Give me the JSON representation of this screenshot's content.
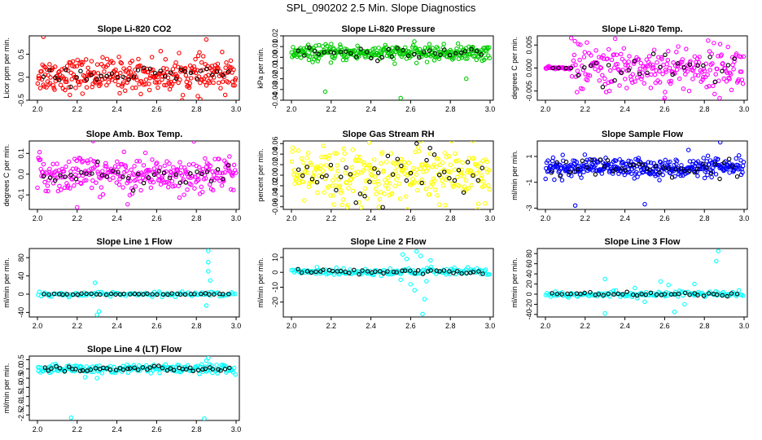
{
  "page_title": "SPL_090202  2.5 Min. Slope Diagnostics",
  "chart_data": [
    {
      "type": "scatter",
      "title": "Slope Li-820 CO2",
      "ylabel": "Licor ppm per min.",
      "color": "#ff0000",
      "xlim": [
        2.0,
        3.0
      ],
      "ylim": [
        -0.5,
        0.9
      ],
      "xticks": [
        "2.0",
        "2.2",
        "2.4",
        "2.6",
        "2.8",
        "3.0"
      ],
      "yticks": [
        {
          "v": -0.5,
          "label": "-0.5"
        },
        {
          "v": 0.0,
          "label": "0.0"
        },
        {
          "v": 0.5,
          "label": "0.5"
        }
      ],
      "center": 0.05,
      "spread": 0.18,
      "black_spread": 0.09,
      "n": 320,
      "nb": 36,
      "outliers": [
        [
          2.03,
          0.88
        ],
        [
          2.85,
          0.82
        ],
        [
          2.82,
          -0.48
        ]
      ]
    },
    {
      "type": "scatter",
      "title": "Slope Li-820 Pressure",
      "ylabel": "kPa per min.",
      "color": "#00cc00",
      "xlim": [
        2.0,
        3.0
      ],
      "ylim": [
        -0.04,
        0.02
      ],
      "xticks": [
        "2.0",
        "2.2",
        "2.4",
        "2.6",
        "2.8",
        "3.0"
      ],
      "yticks": [
        {
          "v": -0.04,
          "label": "-0.04"
        },
        {
          "v": -0.03,
          "label": "-0.03"
        },
        {
          "v": -0.02,
          "label": "-0.02"
        },
        {
          "v": -0.01,
          "label": "-0.01"
        },
        {
          "v": 0.0,
          "label": "0.00"
        },
        {
          "v": 0.01,
          "label": "0.01"
        },
        {
          "v": 0.02,
          "label": "0.02"
        }
      ],
      "center": 0.004,
      "spread": 0.0035,
      "black_spread": 0.003,
      "n": 320,
      "nb": 36,
      "outliers": [
        [
          2.17,
          -0.032
        ],
        [
          2.55,
          -0.038
        ],
        [
          2.88,
          -0.02
        ]
      ]
    },
    {
      "type": "scatter",
      "title": "Slope Li-820 Temp.",
      "ylabel": "degrees C per min.",
      "color": "#ff00ff",
      "xlim": [
        2.0,
        3.0
      ],
      "ylim": [
        -0.007,
        0.007
      ],
      "xticks": [
        "2.0",
        "2.2",
        "2.4",
        "2.6",
        "2.8",
        "3.0"
      ],
      "yticks": [
        {
          "v": -0.005,
          "label": "-0.005"
        },
        {
          "v": 0.0,
          "label": "0.000"
        },
        {
          "v": 0.005,
          "label": "0.005"
        }
      ],
      "center": 0.0,
      "spread": 0.0025,
      "black_spread": 0.0015,
      "n": 280,
      "nb": 30,
      "outliers": [
        [
          2.13,
          0.0065
        ],
        [
          2.6,
          -0.0065
        ]
      ],
      "flat_until": 2.13
    },
    {
      "type": "scatter",
      "title": "Slope Amb. Box Temp.",
      "ylabel": "degrees C per min.",
      "color": "#ff00ff",
      "xlim": [
        2.0,
        3.0
      ],
      "ylim": [
        -0.17,
        0.16
      ],
      "xticks": [
        "2.0",
        "2.2",
        "2.4",
        "2.6",
        "2.8",
        "3.0"
      ],
      "yticks": [
        {
          "v": -0.1,
          "label": "-0.1"
        },
        {
          "v": 0.0,
          "label": "0.0"
        },
        {
          "v": 0.1,
          "label": "0.1"
        }
      ],
      "center": 0.0,
      "spread": 0.045,
      "black_spread": 0.025,
      "n": 300,
      "nb": 36,
      "outliers": [
        [
          2.28,
          0.16
        ],
        [
          2.2,
          -0.16
        ]
      ]
    },
    {
      "type": "scatter",
      "title": "Slope Gas Stream RH",
      "ylabel": "percent per min.",
      "color": "#ffff00",
      "xlim": [
        2.0,
        3.0
      ],
      "ylim": [
        -0.065,
        0.065
      ],
      "xticks": [
        "2.0",
        "2.2",
        "2.4",
        "2.6",
        "2.8",
        "3.0"
      ],
      "yticks": [
        {
          "v": -0.06,
          "label": "-0.06"
        },
        {
          "v": -0.04,
          "label": "-0.04"
        },
        {
          "v": -0.02,
          "label": "-0.02"
        },
        {
          "v": 0.0,
          "label": "0.00"
        },
        {
          "v": 0.02,
          "label": "0.02"
        },
        {
          "v": 0.04,
          "label": "0.04"
        },
        {
          "v": 0.06,
          "label": "0.06"
        }
      ],
      "center": 0.0,
      "spread": 0.028,
      "black_spread": 0.025,
      "n": 300,
      "nb": 40,
      "outliers": []
    },
    {
      "type": "scatter",
      "title": "Slope Sample Flow",
      "ylabel": "ml/min per min.",
      "color": "#0000ff",
      "xlim": [
        2.0,
        3.0
      ],
      "ylim": [
        -3.1,
        2.2
      ],
      "xticks": [
        "2.0",
        "2.2",
        "2.4",
        "2.6",
        "2.8",
        "3.0"
      ],
      "yticks": [
        {
          "v": -3,
          "label": "-3"
        },
        {
          "v": -1,
          "label": "-1"
        },
        {
          "v": 1,
          "label": "1"
        }
      ],
      "center": 0.1,
      "spread": 0.35,
      "black_spread": 0.35,
      "n": 340,
      "nb": 44,
      "outliers": [
        [
          2.15,
          -2.8
        ],
        [
          2.88,
          2.1
        ],
        [
          2.72,
          1.5
        ],
        [
          2.5,
          -2.7
        ]
      ]
    },
    {
      "type": "scatter",
      "title": "Slope Line 1 Flow",
      "ylabel": "ml/min per min.",
      "color": "#00ffff",
      "xlim": [
        2.0,
        3.0
      ],
      "ylim": [
        -50,
        100
      ],
      "xticks": [
        "2.0",
        "2.2",
        "2.4",
        "2.6",
        "2.8",
        "3.0"
      ],
      "yticks": [
        {
          "v": -40,
          "label": "-40"
        },
        {
          "v": 0,
          "label": "0"
        },
        {
          "v": 40,
          "label": "40"
        },
        {
          "v": 80,
          "label": "80"
        }
      ],
      "center": 0,
      "spread": 2.5,
      "black_spread": 0.8,
      "n": 120,
      "nb": 40,
      "outliers": [
        [
          2.3,
          -45
        ],
        [
          2.31,
          -38
        ],
        [
          2.29,
          25
        ],
        [
          2.86,
          95
        ],
        [
          2.86,
          70
        ],
        [
          2.87,
          30
        ],
        [
          2.85,
          -25
        ],
        [
          2.86,
          50
        ]
      ]
    },
    {
      "type": "scatter",
      "title": "Slope Line 2 Flow",
      "ylabel": "ml/min per min.",
      "color": "#00ffff",
      "xlim": [
        2.0,
        3.0
      ],
      "ylim": [
        -30,
        16
      ],
      "xticks": [
        "2.0",
        "2.2",
        "2.4",
        "2.6",
        "2.8",
        "3.0"
      ],
      "yticks": [
        {
          "v": -20,
          "label": "-20"
        },
        {
          "v": -10,
          "label": "-10"
        },
        {
          "v": 0,
          "label": "0"
        },
        {
          "v": 10,
          "label": "10"
        }
      ],
      "center": 0.5,
      "spread": 1.2,
      "black_spread": 1.0,
      "n": 160,
      "nb": 44,
      "outliers": [
        [
          2.66,
          -28
        ],
        [
          2.67,
          -18
        ],
        [
          2.62,
          -12
        ],
        [
          2.63,
          14
        ],
        [
          2.56,
          12
        ],
        [
          2.7,
          8
        ],
        [
          2.6,
          -8
        ],
        [
          2.68,
          -6
        ],
        [
          2.58,
          9
        ],
        [
          2.65,
          11
        ],
        [
          2.55,
          -5
        ]
      ]
    },
    {
      "type": "scatter",
      "title": "Slope Line 3 Flow",
      "ylabel": "ml/min per min.",
      "color": "#00ffff",
      "xlim": [
        2.0,
        3.0
      ],
      "ylim": [
        -45,
        90
      ],
      "xticks": [
        "2.0",
        "2.2",
        "2.4",
        "2.6",
        "2.8",
        "3.0"
      ],
      "yticks": [
        {
          "v": -40,
          "label": "-40"
        },
        {
          "v": -20,
          "label": "-20"
        },
        {
          "v": 0,
          "label": "0"
        },
        {
          "v": 20,
          "label": "20"
        },
        {
          "v": 40,
          "label": "40"
        },
        {
          "v": 60,
          "label": "60"
        },
        {
          "v": 80,
          "label": "80"
        }
      ],
      "center": 0,
      "spread": 3,
      "black_spread": 1.5,
      "n": 150,
      "nb": 40,
      "outliers": [
        [
          2.3,
          -38
        ],
        [
          2.3,
          30
        ],
        [
          2.87,
          85
        ],
        [
          2.86,
          65
        ],
        [
          2.65,
          -35
        ],
        [
          2.58,
          25
        ],
        [
          2.62,
          18
        ],
        [
          2.7,
          -20
        ],
        [
          2.75,
          20
        ],
        [
          2.5,
          -15
        ],
        [
          2.45,
          12
        ]
      ]
    },
    {
      "type": "scatter",
      "title": "Slope Line 4 (LT) Flow",
      "ylabel": "ml/min per min.",
      "color": "#00ffff",
      "xlim": [
        2.0,
        3.0
      ],
      "ylim": [
        -2.8,
        0.7
      ],
      "xticks": [
        "2.0",
        "2.2",
        "2.4",
        "2.6",
        "2.8",
        "3.0"
      ],
      "yticks": [
        {
          "v": -2.5,
          "label": "-2.5"
        },
        {
          "v": -2.0,
          "label": "-2.0"
        },
        {
          "v": -1.5,
          "label": "-1.5"
        },
        {
          "v": -1.0,
          "label": "-1.0"
        },
        {
          "v": -0.5,
          "label": "-0.5"
        },
        {
          "v": 0.0,
          "label": "0.0"
        },
        {
          "v": 0.5,
          "label": "0.5"
        }
      ],
      "center": 0.0,
      "spread": 0.12,
      "black_spread": 0.06,
      "n": 200,
      "nb": 48,
      "outliers": [
        [
          2.17,
          -2.65
        ],
        [
          2.84,
          -2.7
        ],
        [
          2.86,
          0.6
        ],
        [
          2.85,
          0.45
        ],
        [
          2.3,
          -0.5
        ],
        [
          2.24,
          -0.45
        ]
      ]
    }
  ]
}
